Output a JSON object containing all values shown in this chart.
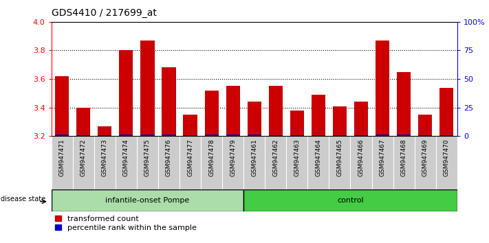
{
  "title": "GDS4410 / 217699_at",
  "samples": [
    "GSM947471",
    "GSM947472",
    "GSM947473",
    "GSM947474",
    "GSM947475",
    "GSM947476",
    "GSM947477",
    "GSM947478",
    "GSM947479",
    "GSM947461",
    "GSM947462",
    "GSM947463",
    "GSM947464",
    "GSM947465",
    "GSM947466",
    "GSM947467",
    "GSM947468",
    "GSM947469",
    "GSM947470"
  ],
  "red_values": [
    3.62,
    3.4,
    3.27,
    3.8,
    3.87,
    3.68,
    3.35,
    3.52,
    3.55,
    3.44,
    3.55,
    3.38,
    3.49,
    3.41,
    3.44,
    3.87,
    3.65,
    3.35,
    3.54
  ],
  "blue_heights": [
    0.013,
    0.008,
    0.007,
    0.01,
    0.01,
    0.013,
    0.007,
    0.009,
    0.009,
    0.009,
    0.008,
    0.007,
    0.008,
    0.008,
    0.008,
    0.01,
    0.011,
    0.007,
    0.008
  ],
  "y_min": 3.2,
  "y_max": 4.0,
  "y_ticks": [
    3.2,
    3.4,
    3.6,
    3.8,
    4.0
  ],
  "right_y_ticks_pos": [
    3.2,
    3.4,
    3.6,
    3.8,
    4.0
  ],
  "right_y_labels": [
    "0",
    "25",
    "50",
    "75",
    "100%"
  ],
  "group1_label": "infantile-onset Pompe",
  "group2_label": "control",
  "group1_count": 9,
  "group2_count": 10,
  "disease_state_label": "disease state",
  "legend_red": "transformed count",
  "legend_blue": "percentile rank within the sample",
  "bar_color_red": "#cc0000",
  "bar_color_blue": "#0000cc",
  "group1_bg": "#aaddaa",
  "group2_bg": "#44cc44",
  "tick_area_bg": "#cccccc"
}
